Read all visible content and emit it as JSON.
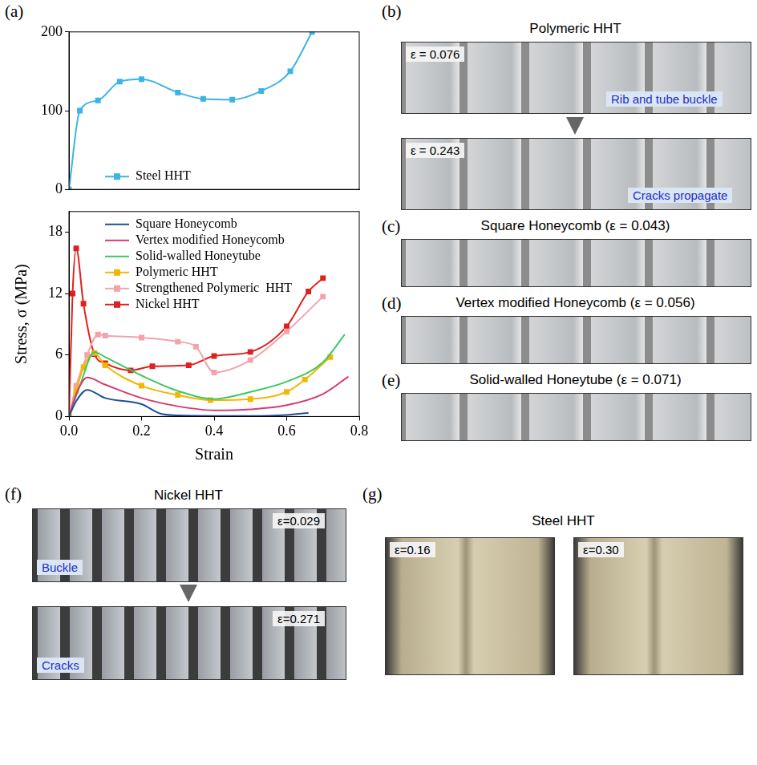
{
  "chart_data": [
    {
      "panel": "(a)",
      "type": "line",
      "xlim": [
        0,
        0.8
      ],
      "ylim": [
        0,
        200
      ],
      "yticks": [
        0,
        100,
        200
      ],
      "tick_labels": "y",
      "legend": "lower left",
      "series": [
        {
          "name": "Steel HHT",
          "color": "#3bb4e6",
          "marker": "square",
          "x": [
            0,
            0.03,
            0.08,
            0.14,
            0.2,
            0.3,
            0.37,
            0.45,
            0.53,
            0.61,
            0.67
          ],
          "values": [
            0,
            100,
            113,
            137,
            140,
            123,
            115,
            114,
            125,
            150,
            200
          ]
        }
      ]
    },
    {
      "type": "line",
      "xlabel": "Strain",
      "ylabel": "Stress, σ (MPa)",
      "xlim": [
        0,
        0.8
      ],
      "xticks": [
        {
          "value": 0,
          "label": "0.0"
        },
        0.2,
        0.4,
        0.6,
        0.8
      ],
      "ylim": [
        0,
        20
      ],
      "yticks": [
        0,
        6,
        12,
        18
      ],
      "legend": "upper left",
      "series": [
        {
          "name": "Square Honeycomb",
          "color": "#1f4f9c",
          "marker": "none",
          "x": [
            0,
            0.02,
            0.05,
            0.1,
            0.2,
            0.25,
            0.3,
            0.4,
            0.5,
            0.6,
            0.66
          ],
          "values": [
            0,
            1.5,
            2.6,
            1.8,
            1.2,
            0.3,
            0.1,
            0.05,
            0.05,
            0.15,
            0.35
          ]
        },
        {
          "name": "Vertex modified Honeycomb",
          "color": "#d63a72",
          "marker": "none",
          "x": [
            0,
            0.02,
            0.05,
            0.1,
            0.2,
            0.3,
            0.4,
            0.5,
            0.6,
            0.7,
            0.77
          ],
          "values": [
            0,
            2.2,
            3.8,
            3.1,
            1.8,
            1.0,
            0.6,
            0.7,
            1.1,
            2.2,
            3.9
          ]
        },
        {
          "name": "Solid-walled Honeytube",
          "color": "#3cc864",
          "marker": "none",
          "x": [
            0,
            0.03,
            0.07,
            0.1,
            0.2,
            0.3,
            0.4,
            0.5,
            0.6,
            0.7,
            0.76
          ],
          "values": [
            0,
            3.0,
            6.3,
            5.8,
            4.0,
            2.5,
            1.7,
            2.4,
            3.4,
            5.3,
            8.0
          ]
        },
        {
          "name": "Polymeric HHT",
          "color": "#f2b705",
          "marker": "square",
          "x": [
            0,
            0.02,
            0.04,
            0.07,
            0.1,
            0.2,
            0.3,
            0.39,
            0.5,
            0.6,
            0.65,
            0.72
          ],
          "values": [
            0,
            2.5,
            4.8,
            6.2,
            5.0,
            3.0,
            2.1,
            1.6,
            1.7,
            2.4,
            3.6,
            5.8
          ]
        },
        {
          "name": "Strengthened Polymeric  HHT",
          "color": "#f4a3ab",
          "marker": "square",
          "x": [
            0,
            0.02,
            0.05,
            0.08,
            0.1,
            0.2,
            0.3,
            0.35,
            0.4,
            0.5,
            0.6,
            0.7
          ],
          "values": [
            0,
            3.0,
            6.0,
            8.0,
            7.9,
            7.7,
            7.3,
            6.8,
            4.3,
            5.5,
            8.3,
            11.7
          ]
        },
        {
          "name": "Nickel HHT",
          "color": "#e0201e",
          "marker": "square",
          "x": [
            0,
            0.01,
            0.02,
            0.04,
            0.07,
            0.1,
            0.17,
            0.23,
            0.33,
            0.4,
            0.5,
            0.6,
            0.66,
            0.7
          ],
          "values": [
            0,
            12,
            16.4,
            11,
            6.1,
            5.2,
            4.5,
            4.9,
            5.0,
            5.9,
            6.3,
            8.8,
            12.2,
            13.5
          ]
        }
      ]
    }
  ],
  "panels": [
    {
      "label": "(b)",
      "title": "Polymeric HHT",
      "images": [
        {
          "strain": "ε = 0.076",
          "note": "Rib and tube buckle"
        },
        {
          "strain": "ε = 0.243",
          "note": "Cracks propagate"
        }
      ]
    },
    {
      "label": "(c)",
      "title": "Square Honeycomb (ε = 0.043)"
    },
    {
      "label": "(d)",
      "title": "Vertex modified Honeycomb (ε = 0.056)"
    },
    {
      "label": "(e)",
      "title": "Solid-walled Honeytube (ε = 0.071)"
    },
    {
      "label": "(f)",
      "title": "Nickel HHT",
      "images": [
        {
          "strain": "ε=0.029",
          "note": "Buckle"
        },
        {
          "strain": "ε=0.271",
          "note": "Cracks"
        }
      ]
    },
    {
      "label": "(g)",
      "title": "Steel HHT",
      "images": [
        {
          "strain": "ε=0.16"
        },
        {
          "strain": "ε=0.30"
        }
      ]
    }
  ]
}
